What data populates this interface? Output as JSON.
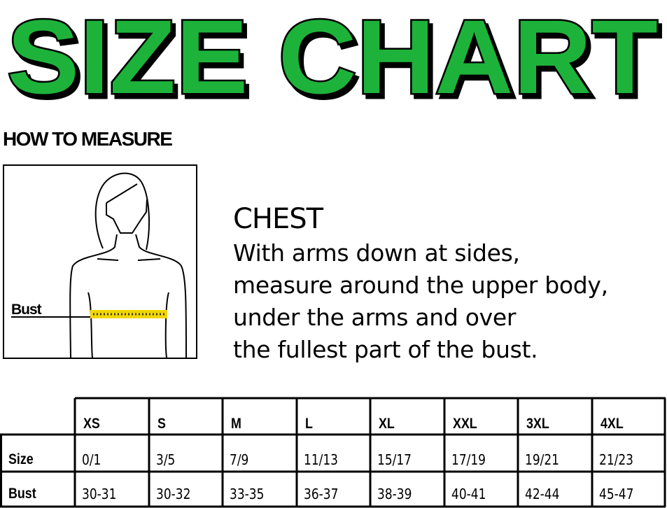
{
  "title": "SIZE CHART",
  "colors": {
    "title_fill": "#1db33a",
    "title_outline": "#000000",
    "tape": "#f2d600"
  },
  "how_to_measure": {
    "heading": "HOW TO MEASURE",
    "figure_label": "Bust",
    "section_title": "CHEST",
    "instructions": [
      "With arms down at sides,",
      "measure around the upper body,",
      "under the arms and over",
      "the fullest part of the bust."
    ]
  },
  "size_table": {
    "columns": [
      "XS",
      "S",
      "M",
      "L",
      "XL",
      "XXL",
      "3XL",
      "4XL"
    ],
    "rows": [
      {
        "label": "Size",
        "values": [
          "0/1",
          "3/5",
          "7/9",
          "11/13",
          "15/17",
          "17/19",
          "19/21",
          "21/23"
        ]
      },
      {
        "label": "Bust",
        "values": [
          "30-31",
          "30-32",
          "33-35",
          "36-37",
          "38-39",
          "40-41",
          "42-44",
          "45-47"
        ]
      }
    ]
  }
}
